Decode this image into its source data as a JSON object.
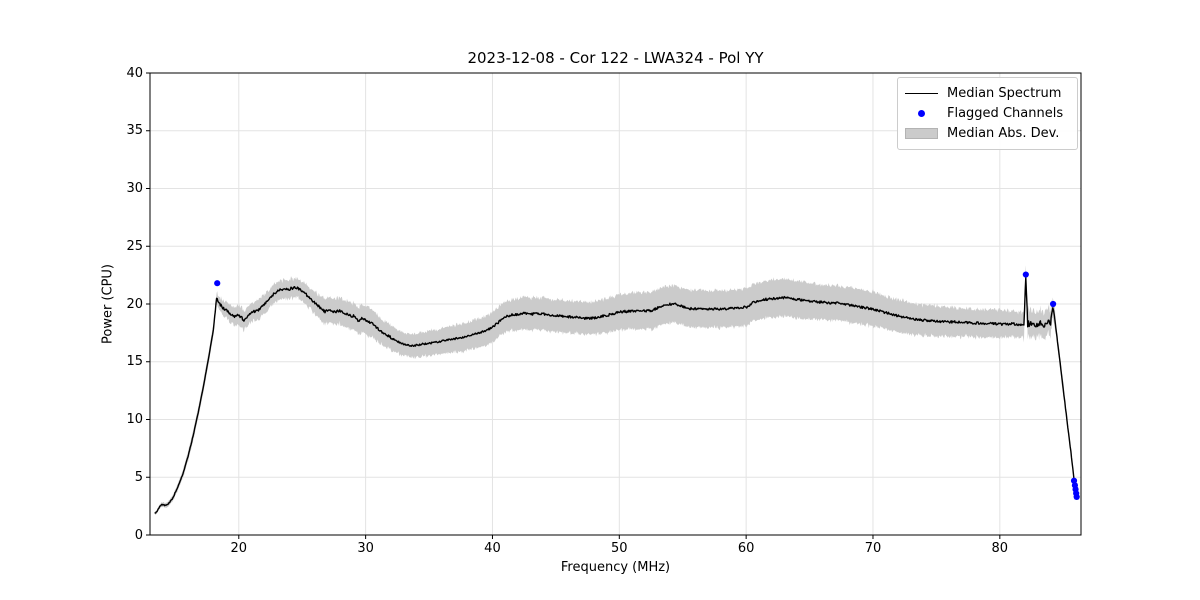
{
  "chart_data": {
    "type": "line",
    "title": "2023-12-08 - Cor 122 - LWA324 - Pol YY",
    "xlabel": "Frequency (MHz)",
    "ylabel": "Power (CPU)",
    "xlim": [
      13.0,
      86.4
    ],
    "ylim": [
      0,
      40
    ],
    "xticks": [
      20,
      30,
      40,
      50,
      60,
      70,
      80
    ],
    "yticks": [
      0,
      5,
      10,
      15,
      20,
      25,
      30,
      35,
      40
    ],
    "grid": true,
    "legend_position": "upper right",
    "colors": {
      "median_line": "#000000",
      "mad_band": "#cbcbcb",
      "flagged": "#0000ff",
      "gridline": "#e3e3e3",
      "frame": "#000000"
    },
    "legend": {
      "items": [
        {
          "label": "Median Spectrum",
          "type": "line"
        },
        {
          "label": "Flagged Channels",
          "type": "marker"
        },
        {
          "label": "Median Abs. Dev.",
          "type": "patch"
        }
      ]
    },
    "series": {
      "median_spectrum_anchors_freq_power_mad": [
        [
          13.4,
          1.9,
          0.15
        ],
        [
          13.55,
          2.0,
          0.15
        ],
        [
          13.75,
          2.45,
          0.18
        ],
        [
          13.9,
          2.65,
          0.2
        ],
        [
          14.05,
          2.6,
          0.2
        ],
        [
          14.25,
          2.55,
          0.2
        ],
        [
          14.5,
          2.75,
          0.22
        ],
        [
          14.8,
          3.2,
          0.25
        ],
        [
          15.2,
          4.2,
          0.3
        ],
        [
          15.6,
          5.3,
          0.35
        ],
        [
          16.0,
          6.8,
          0.4
        ],
        [
          16.4,
          8.6,
          0.45
        ],
        [
          16.8,
          10.6,
          0.48
        ],
        [
          17.2,
          12.8,
          0.5
        ],
        [
          17.6,
          15.2,
          0.5
        ],
        [
          18.0,
          17.8,
          0.5
        ],
        [
          18.25,
          20.55,
          0.45
        ],
        [
          18.45,
          20.1,
          0.55
        ],
        [
          18.7,
          19.7,
          0.65
        ],
        [
          19.0,
          19.45,
          0.7
        ],
        [
          19.3,
          19.2,
          0.75
        ],
        [
          19.6,
          18.9,
          0.78
        ],
        [
          19.9,
          19.15,
          0.8
        ],
        [
          20.15,
          18.9,
          0.8
        ],
        [
          20.4,
          18.55,
          0.8
        ],
        [
          20.8,
          19.0,
          0.82
        ],
        [
          21.2,
          19.35,
          0.85
        ],
        [
          21.6,
          19.5,
          0.85
        ],
        [
          22.0,
          19.9,
          0.85
        ],
        [
          22.4,
          20.45,
          0.85
        ],
        [
          22.8,
          20.9,
          0.82
        ],
        [
          23.2,
          21.2,
          0.8
        ],
        [
          23.6,
          21.35,
          0.8
        ],
        [
          24.0,
          21.3,
          0.8
        ],
        [
          24.4,
          21.45,
          0.8
        ],
        [
          24.8,
          21.3,
          0.82
        ],
        [
          25.2,
          20.95,
          0.85
        ],
        [
          25.6,
          20.5,
          0.9
        ],
        [
          25.9,
          20.15,
          0.95
        ],
        [
          26.2,
          19.9,
          1.0
        ],
        [
          26.5,
          19.55,
          1.05
        ],
        [
          26.8,
          19.35,
          1.08
        ],
        [
          27.1,
          19.5,
          1.1
        ],
        [
          27.5,
          19.3,
          1.1
        ],
        [
          27.9,
          19.4,
          1.1
        ],
        [
          28.3,
          19.25,
          1.12
        ],
        [
          28.7,
          19.0,
          1.15
        ],
        [
          29.1,
          18.95,
          1.18
        ],
        [
          29.4,
          18.5,
          1.2
        ],
        [
          29.7,
          18.8,
          1.22
        ],
        [
          30.1,
          18.55,
          1.25
        ],
        [
          30.5,
          18.3,
          1.22
        ],
        [
          30.9,
          17.95,
          1.18
        ],
        [
          31.3,
          17.6,
          1.12
        ],
        [
          31.7,
          17.3,
          1.08
        ],
        [
          32.1,
          17.0,
          1.05
        ],
        [
          32.6,
          16.7,
          1.02
        ],
        [
          33.1,
          16.5,
          1.0
        ],
        [
          33.6,
          16.4,
          1.0
        ],
        [
          34.1,
          16.45,
          1.0
        ],
        [
          34.6,
          16.55,
          1.05
        ],
        [
          35.1,
          16.6,
          1.08
        ],
        [
          35.6,
          16.7,
          1.1
        ],
        [
          36.1,
          16.8,
          1.12
        ],
        [
          36.6,
          16.9,
          1.15
        ],
        [
          37.1,
          17.0,
          1.18
        ],
        [
          37.6,
          17.1,
          1.2
        ],
        [
          38.1,
          17.25,
          1.22
        ],
        [
          38.6,
          17.4,
          1.25
        ],
        [
          39.1,
          17.55,
          1.28
        ],
        [
          39.6,
          17.75,
          1.3
        ],
        [
          40.0,
          18.0,
          1.3
        ],
        [
          40.4,
          18.35,
          1.3
        ],
        [
          40.8,
          18.7,
          1.32
        ],
        [
          41.2,
          18.95,
          1.35
        ],
        [
          41.6,
          19.1,
          1.35
        ],
        [
          42.0,
          19.1,
          1.35
        ],
        [
          42.5,
          19.2,
          1.38
        ],
        [
          43.0,
          19.1,
          1.4
        ],
        [
          43.5,
          19.2,
          1.4
        ],
        [
          44.0,
          19.15,
          1.4
        ],
        [
          44.5,
          19.05,
          1.4
        ],
        [
          45.0,
          19.0,
          1.4
        ],
        [
          45.5,
          18.95,
          1.4
        ],
        [
          46.0,
          18.9,
          1.4
        ],
        [
          46.5,
          18.85,
          1.4
        ],
        [
          47.0,
          18.8,
          1.4
        ],
        [
          47.5,
          18.75,
          1.4
        ],
        [
          48.0,
          18.8,
          1.42
        ],
        [
          48.5,
          18.9,
          1.45
        ],
        [
          49.0,
          19.0,
          1.48
        ],
        [
          49.5,
          19.15,
          1.5
        ],
        [
          50.0,
          19.3,
          1.52
        ],
        [
          50.5,
          19.35,
          1.55
        ],
        [
          51.0,
          19.4,
          1.58
        ],
        [
          51.5,
          19.4,
          1.6
        ],
        [
          52.0,
          19.4,
          1.6
        ],
        [
          52.6,
          19.45,
          1.6
        ],
        [
          53.1,
          19.7,
          1.6
        ],
        [
          53.6,
          19.9,
          1.6
        ],
        [
          54.1,
          20.0,
          1.6
        ],
        [
          54.6,
          19.95,
          1.6
        ],
        [
          55.1,
          19.75,
          1.6
        ],
        [
          55.6,
          19.6,
          1.6
        ],
        [
          56.1,
          19.6,
          1.6
        ],
        [
          56.6,
          19.6,
          1.6
        ],
        [
          57.1,
          19.55,
          1.6
        ],
        [
          57.6,
          19.6,
          1.6
        ],
        [
          58.1,
          19.55,
          1.6
        ],
        [
          58.6,
          19.6,
          1.6
        ],
        [
          59.1,
          19.65,
          1.6
        ],
        [
          59.6,
          19.7,
          1.6
        ],
        [
          60.1,
          19.75,
          1.6
        ],
        [
          60.5,
          20.1,
          1.6
        ],
        [
          61.0,
          20.3,
          1.6
        ],
        [
          61.5,
          20.4,
          1.6
        ],
        [
          62.0,
          20.45,
          1.6
        ],
        [
          62.5,
          20.5,
          1.6
        ],
        [
          63.0,
          20.55,
          1.6
        ],
        [
          63.5,
          20.5,
          1.6
        ],
        [
          64.0,
          20.4,
          1.6
        ],
        [
          64.5,
          20.3,
          1.6
        ],
        [
          65.0,
          20.25,
          1.58
        ],
        [
          65.5,
          20.2,
          1.55
        ],
        [
          66.0,
          20.15,
          1.55
        ],
        [
          66.5,
          20.1,
          1.52
        ],
        [
          67.0,
          20.1,
          1.5
        ],
        [
          67.5,
          20.05,
          1.5
        ],
        [
          68.0,
          19.95,
          1.5
        ],
        [
          68.5,
          19.85,
          1.5
        ],
        [
          69.0,
          19.75,
          1.5
        ],
        [
          69.5,
          19.65,
          1.5
        ],
        [
          70.0,
          19.55,
          1.48
        ],
        [
          70.5,
          19.4,
          1.45
        ],
        [
          71.0,
          19.25,
          1.42
        ],
        [
          71.5,
          19.1,
          1.4
        ],
        [
          72.0,
          18.95,
          1.4
        ],
        [
          72.5,
          18.85,
          1.4
        ],
        [
          73.0,
          18.75,
          1.38
        ],
        [
          73.5,
          18.65,
          1.35
        ],
        [
          74.0,
          18.6,
          1.35
        ],
        [
          74.5,
          18.55,
          1.32
        ],
        [
          75.0,
          18.5,
          1.3
        ],
        [
          75.5,
          18.5,
          1.3
        ],
        [
          76.0,
          18.45,
          1.28
        ],
        [
          76.5,
          18.45,
          1.25
        ],
        [
          77.0,
          18.4,
          1.25
        ],
        [
          77.5,
          18.4,
          1.22
        ],
        [
          78.0,
          18.35,
          1.2
        ],
        [
          78.5,
          18.35,
          1.2
        ],
        [
          79.0,
          18.3,
          1.2
        ],
        [
          79.5,
          18.3,
          1.2
        ],
        [
          80.0,
          18.25,
          1.18
        ],
        [
          80.5,
          18.25,
          1.15
        ],
        [
          81.0,
          18.3,
          1.12
        ],
        [
          81.5,
          18.2,
          1.1
        ],
        [
          81.9,
          18.3,
          1.1
        ],
        [
          82.05,
          22.4,
          1.05
        ],
        [
          82.2,
          18.3,
          1.1
        ],
        [
          82.5,
          18.35,
          1.1
        ],
        [
          82.8,
          18.25,
          1.1
        ],
        [
          83.1,
          18.35,
          1.1
        ],
        [
          83.4,
          18.25,
          1.1
        ],
        [
          83.7,
          18.3,
          1.1
        ],
        [
          84.0,
          18.4,
          1.05
        ],
        [
          84.18,
          19.7,
          0.9
        ],
        [
          84.3,
          19.0,
          0.75
        ],
        [
          84.45,
          17.6,
          0.65
        ],
        [
          84.7,
          15.4,
          0.55
        ],
        [
          85.0,
          12.6,
          0.45
        ],
        [
          85.3,
          9.9,
          0.4
        ],
        [
          85.6,
          7.2,
          0.35
        ],
        [
          85.85,
          4.8,
          0.3
        ],
        [
          85.95,
          4.0,
          0.25
        ],
        [
          86.05,
          3.4,
          0.2
        ],
        [
          86.1,
          3.2,
          0.18
        ]
      ],
      "flagged_channels_freq_power": [
        [
          18.3,
          21.8
        ],
        [
          82.05,
          22.55
        ],
        [
          84.2,
          20.0
        ],
        [
          85.85,
          4.7
        ],
        [
          85.92,
          4.3
        ],
        [
          85.97,
          3.95
        ],
        [
          86.02,
          3.6
        ],
        [
          86.06,
          3.3
        ]
      ]
    },
    "noise": {
      "line_regions": [
        {
          "from": 13.0,
          "to": 18.0,
          "amp": 0.05
        },
        {
          "from": 18.0,
          "to": 32.0,
          "amp": 0.12
        },
        {
          "from": 32.0,
          "to": 40.0,
          "amp": 0.08
        },
        {
          "from": 40.0,
          "to": 81.9,
          "amp": 0.1
        },
        {
          "from": 81.9,
          "to": 84.1,
          "amp": 0.28
        },
        {
          "from": 84.1,
          "to": 86.5,
          "amp": 0.06
        }
      ],
      "band_regions": [
        {
          "from": 13.0,
          "to": 18.0,
          "amp": 0.06
        },
        {
          "from": 18.0,
          "to": 32.0,
          "amp": 0.22
        },
        {
          "from": 32.0,
          "to": 70.0,
          "amp": 0.18
        },
        {
          "from": 70.0,
          "to": 81.9,
          "amp": 0.2
        },
        {
          "from": 81.9,
          "to": 85.2,
          "amp": 0.5
        },
        {
          "from": 85.2,
          "to": 86.5,
          "amp": 0.12
        }
      ]
    }
  }
}
